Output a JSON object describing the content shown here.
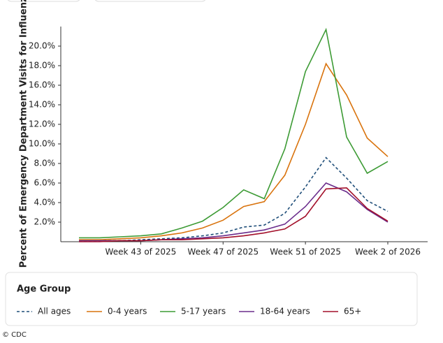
{
  "chart_data": {
    "type": "line",
    "y_label": "Percent of Emergency Department Visits for Influenza",
    "categories": [
      null,
      null,
      null,
      "Week 43 of 2025",
      null,
      null,
      null,
      "Week 47 of 2025",
      null,
      null,
      null,
      "Week 51 of 2025",
      null,
      null,
      null,
      "Week 2 of 2026"
    ],
    "ylim": [
      0,
      22
    ],
    "yticks": [
      {
        "value": 2,
        "label": "2.0%"
      },
      {
        "value": 4,
        "label": "4.0%"
      },
      {
        "value": 6,
        "label": "6.0%"
      },
      {
        "value": 8,
        "label": "8.0%"
      },
      {
        "value": 10,
        "label": "10.0%"
      },
      {
        "value": 12,
        "label": "12.0%"
      },
      {
        "value": 14,
        "label": "14.0%"
      },
      {
        "value": 16,
        "label": "16.0%"
      },
      {
        "value": 18,
        "label": "18.0%"
      },
      {
        "value": 20,
        "label": "20.0%"
      }
    ],
    "legend_title": "Age Group",
    "series": [
      {
        "name": "All ages",
        "color": "#1f4e79",
        "dashed": true,
        "values": [
          0.1,
          0.1,
          0.1,
          0.2,
          0.3,
          0.4,
          0.6,
          0.9,
          1.5,
          1.7,
          2.9,
          5.6,
          8.6,
          6.5,
          4.2,
          3.1
        ]
      },
      {
        "name": "0-4 years",
        "color": "#d9730d",
        "dashed": false,
        "values": [
          0.2,
          0.2,
          0.3,
          0.4,
          0.6,
          0.9,
          1.4,
          2.2,
          3.6,
          4.1,
          6.8,
          12.0,
          18.2,
          15.0,
          10.6,
          8.7
        ]
      },
      {
        "name": "5-17 years",
        "color": "#3d9b35",
        "dashed": false,
        "values": [
          0.4,
          0.4,
          0.5,
          0.6,
          0.8,
          1.4,
          2.1,
          3.5,
          5.3,
          4.4,
          9.5,
          17.4,
          21.7,
          10.7,
          7.0,
          8.2
        ]
      },
      {
        "name": "18-64 years",
        "color": "#6b2d8c",
        "dashed": false,
        "values": [
          0.1,
          0.1,
          0.1,
          0.1,
          0.2,
          0.3,
          0.4,
          0.6,
          0.9,
          1.2,
          1.8,
          3.6,
          6.0,
          5.1,
          3.3,
          2.0
        ]
      },
      {
        "name": "65+",
        "color": "#a3102a",
        "dashed": false,
        "values": [
          0.0,
          0.0,
          0.1,
          0.1,
          0.2,
          0.2,
          0.3,
          0.4,
          0.6,
          0.9,
          1.3,
          2.6,
          5.4,
          5.5,
          3.4,
          2.1
        ]
      }
    ]
  },
  "credit": "© CDC"
}
